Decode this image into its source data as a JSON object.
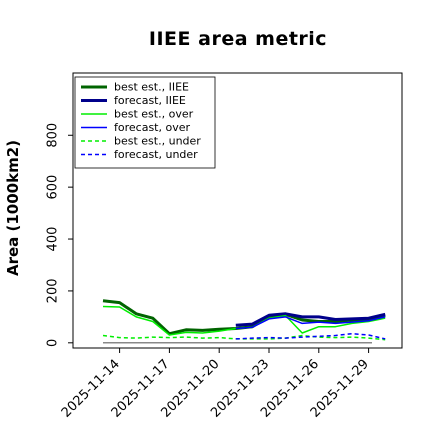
{
  "chart_data": {
    "type": "line",
    "title": "IIEE area metric",
    "xlabel": "",
    "ylabel": "Area (1000km2)",
    "x": [
      "2025-11-13",
      "2025-11-14",
      "2025-11-15",
      "2025-11-16",
      "2025-11-17",
      "2025-11-18",
      "2025-11-19",
      "2025-11-20",
      "2025-11-21",
      "2025-11-22",
      "2025-11-23",
      "2025-11-24",
      "2025-11-25",
      "2025-11-26",
      "2025-11-27",
      "2025-11-28",
      "2025-11-29",
      "2025-11-30"
    ],
    "xticks": [
      "2025-11-14",
      "2025-11-17",
      "2025-11-20",
      "2025-11-23",
      "2025-11-26",
      "2025-11-29"
    ],
    "highlight_tick": "2025-11-20",
    "highlight_color": "#2e8b2e",
    "yticks": [
      0,
      200,
      400,
      600,
      800
    ],
    "ylim": [
      -20,
      1040
    ],
    "grid": false,
    "legend_position": "top-left",
    "baseline_color": "#888888",
    "series": [
      {
        "name": "best est., IIEE",
        "color": "#006400",
        "dash": "solid",
        "width": 3,
        "values": [
          162,
          155,
          112,
          95,
          35,
          50,
          48,
          52,
          55,
          62,
          102,
          110,
          88,
          82,
          82,
          88,
          90,
          105
        ]
      },
      {
        "name": "forecast, IIEE",
        "color": "#00008b",
        "dash": "solid",
        "width": 3,
        "values": [
          null,
          null,
          null,
          null,
          null,
          null,
          null,
          null,
          68,
          72,
          106,
          112,
          100,
          100,
          90,
          92,
          95,
          110
        ]
      },
      {
        "name": "best est., over",
        "color": "#00ee00",
        "dash": "solid",
        "width": 1.5,
        "values": [
          140,
          138,
          100,
          82,
          30,
          40,
          38,
          45,
          55,
          60,
          95,
          105,
          38,
          62,
          62,
          75,
          82,
          95
        ]
      },
      {
        "name": "forecast, over",
        "color": "#0000ff",
        "dash": "solid",
        "width": 1.5,
        "values": [
          null,
          null,
          null,
          null,
          null,
          null,
          null,
          null,
          55,
          60,
          92,
          100,
          75,
          80,
          75,
          80,
          85,
          100
        ]
      },
      {
        "name": "best est., under",
        "color": "#00ee00",
        "dash": "dashed",
        "width": 1.5,
        "values": [
          28,
          20,
          18,
          22,
          20,
          22,
          18,
          20,
          15,
          15,
          15,
          18,
          28,
          22,
          20,
          22,
          18,
          12
        ]
      },
      {
        "name": "forecast, under",
        "color": "#0000ff",
        "dash": "dashed",
        "width": 1.5,
        "values": [
          null,
          null,
          null,
          null,
          null,
          null,
          null,
          null,
          15,
          18,
          20,
          18,
          22,
          25,
          28,
          35,
          30,
          15
        ]
      }
    ]
  }
}
